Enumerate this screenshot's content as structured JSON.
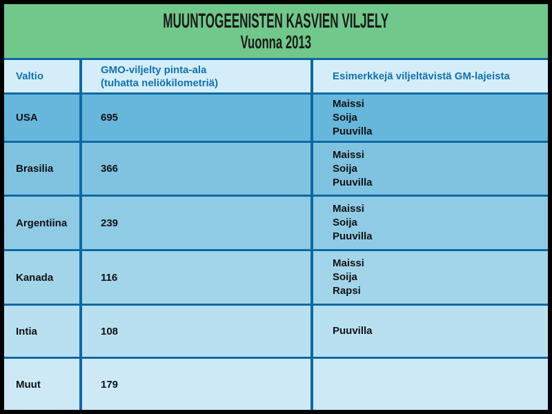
{
  "header": {
    "title": "MUUNTOGEENISTEN KASVIEN VILJELY",
    "subtitle": "Vuonna 2013"
  },
  "table": {
    "columns": [
      {
        "label": "Valtio"
      },
      {
        "label": [
          "GMO-viljelty pinta-ala",
          "(tuhatta neliökilometriä)"
        ]
      },
      {
        "label": "Esimerkkejä viljeltävistä GM-lajeista"
      }
    ],
    "rows": [
      {
        "country": "USA",
        "area": "695",
        "species": [
          "Maissi",
          "Soija",
          "Puuvilla"
        ]
      },
      {
        "country": "Brasilia",
        "area": "366",
        "species": [
          "Maissi",
          "Soija",
          "Puuvilla"
        ]
      },
      {
        "country": "Argentiina",
        "area": "239",
        "species": [
          "Maissi",
          "Soija",
          "Puuvilla"
        ]
      },
      {
        "country": "Kanada",
        "area": "116",
        "species": [
          "Maissi",
          "Soija",
          "Rapsi"
        ]
      },
      {
        "country": "Intia",
        "area": "108",
        "species": [
          "Puuvilla"
        ]
      },
      {
        "country": "Muut",
        "area": "179",
        "species": []
      }
    ]
  },
  "colors": {
    "title_band_green": "#71c88b",
    "header_row_bg": "#d5edf8",
    "header_text_blue": "#0f72b2",
    "grid_border_blue": "#0b69a3",
    "frame_black": "#000000",
    "cell_text": "#111111",
    "row_backgrounds": [
      "#66b7db",
      "#80c3e1",
      "#90cbe5",
      "#a3d5ea",
      "#b9e0f0",
      "#cde9f6"
    ]
  },
  "chart_data": {
    "type": "table",
    "title": "MUUNTOGEENISTEN KASVIEN VILJELY",
    "subtitle": "Vuonna 2013",
    "columns": [
      "Valtio",
      "GMO-viljelty pinta-ala (tuhatta neliökilometriä)",
      "Esimerkkejä viljeltävistä GM-lajeista"
    ],
    "units": "tuhatta neliökilometriä",
    "rows": [
      [
        "USA",
        695,
        "Maissi, Soija, Puuvilla"
      ],
      [
        "Brasilia",
        366,
        "Maissi, Soija, Puuvilla"
      ],
      [
        "Argentiina",
        239,
        "Maissi, Soija, Puuvilla"
      ],
      [
        "Kanada",
        116,
        "Maissi, Soija, Rapsi"
      ],
      [
        "Intia",
        108,
        "Puuvilla"
      ],
      [
        "Muut",
        179,
        ""
      ]
    ]
  }
}
